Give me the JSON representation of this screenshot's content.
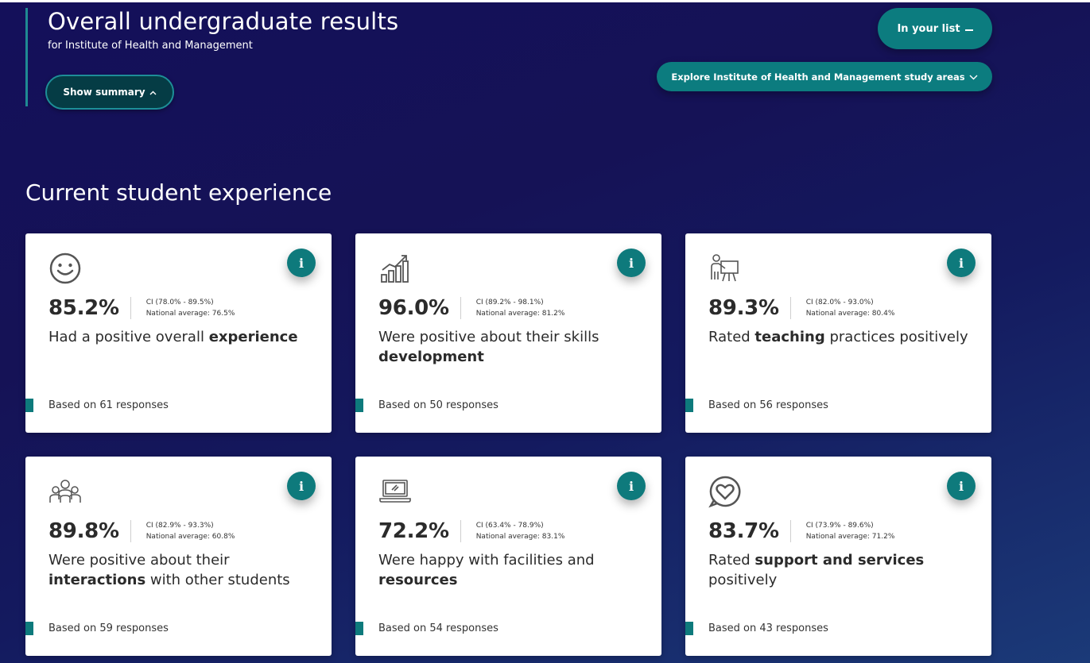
{
  "header": {
    "title": "Overall undergraduate results",
    "subtitle": "for Institute of Health and Management",
    "show_summary_label": "Show summary",
    "in_your_list_label": "In your list",
    "explore_label": "Explore Institute of Health and Management study areas"
  },
  "section": {
    "title": "Current student experience"
  },
  "colors": {
    "accent": "#0e7a7c",
    "background": "#14105a",
    "card": "#ffffff"
  },
  "cards": [
    {
      "icon": "smiley-icon",
      "percent": "85.2%",
      "ci": "CI (78.0% - 89.5%)",
      "national_average": "National average: 76.5%",
      "statement_pre": "Had a positive overall ",
      "statement_bold": "experience",
      "statement_post": "",
      "responses": "Based on 61 responses"
    },
    {
      "icon": "growth-chart-icon",
      "percent": "96.0%",
      "ci": "CI (89.2% - 98.1%)",
      "national_average": "National average: 81.2%",
      "statement_pre": "Were positive about their skills ",
      "statement_bold": "development",
      "statement_post": "",
      "responses": "Based on 50 responses"
    },
    {
      "icon": "teacher-icon",
      "percent": "89.3%",
      "ci": "CI (82.0% - 93.0%)",
      "national_average": "National average: 80.4%",
      "statement_pre": "Rated ",
      "statement_bold": "teaching",
      "statement_post": " practices positively",
      "responses": "Based on 56 responses"
    },
    {
      "icon": "students-group-icon",
      "percent": "89.8%",
      "ci": "CI (82.9% - 93.3%)",
      "national_average": "National average: 60.8%",
      "statement_pre": "Were positive about their ",
      "statement_bold": "interactions",
      "statement_post": " with other students",
      "responses": "Based on 59 responses"
    },
    {
      "icon": "laptop-icon",
      "percent": "72.2%",
      "ci": "CI (63.4% - 78.9%)",
      "national_average": "National average: 83.1%",
      "statement_pre": "Were happy with facilities and ",
      "statement_bold": "resources",
      "statement_post": "",
      "responses": "Based on 54 responses"
    },
    {
      "icon": "heart-chat-icon",
      "percent": "83.7%",
      "ci": "CI (73.9% - 89.6%)",
      "national_average": "National average: 71.2%",
      "statement_pre": "Rated ",
      "statement_bold": "support and services",
      "statement_post": " positively",
      "responses": "Based on 43 responses"
    }
  ]
}
